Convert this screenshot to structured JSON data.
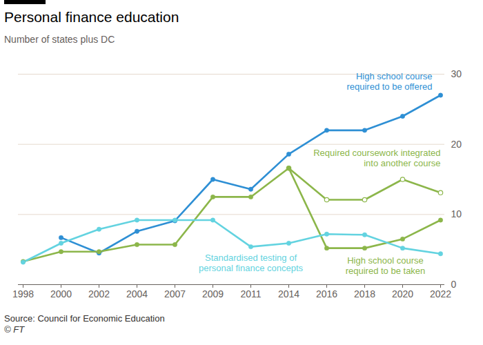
{
  "chart_data": {
    "type": "line",
    "title": "Personal finance education",
    "subtitle": "Number of states plus DC",
    "source": "Source: Council for Economic Education",
    "credit": "© FT",
    "categories": [
      "1998",
      "2000",
      "2002",
      "2004",
      "2007",
      "2009",
      "2011",
      "2014",
      "2016",
      "2018",
      "2020",
      "2022"
    ],
    "series": [
      {
        "name": "High school course\nrequired to be offered",
        "color": "#2e8fd4",
        "marker": "circle",
        "values": [
          null,
          6.7,
          4.5,
          7.6,
          9.1,
          15,
          13.6,
          18.6,
          22,
          22,
          24,
          27
        ]
      },
      {
        "name": "Required coursework integrated\ninto another course",
        "color": "#8cb64a",
        "marker": "hollow",
        "values": [
          null,
          null,
          null,
          null,
          null,
          null,
          null,
          16.6,
          12.1,
          12.1,
          15,
          13.1
        ]
      },
      {
        "name": "High school course\nrequired to be taken",
        "color": "#8cb64a",
        "marker": "circle",
        "values": [
          3.3,
          4.7,
          4.7,
          5.7,
          5.7,
          12.5,
          12.5,
          16.6,
          5.2,
          5.2,
          6.5,
          9.2
        ]
      },
      {
        "name": "Standardised testing of\npersonal finance concepts",
        "color": "#63d3e0",
        "marker": "circle",
        "values": [
          3.2,
          5.9,
          7.9,
          9.2,
          9.2,
          9.2,
          5.4,
          5.9,
          7.2,
          7.1,
          5.2,
          4.4
        ]
      }
    ],
    "ylim": [
      0,
      30
    ],
    "yticks": [
      0,
      10,
      20,
      30
    ],
    "grid": true
  }
}
